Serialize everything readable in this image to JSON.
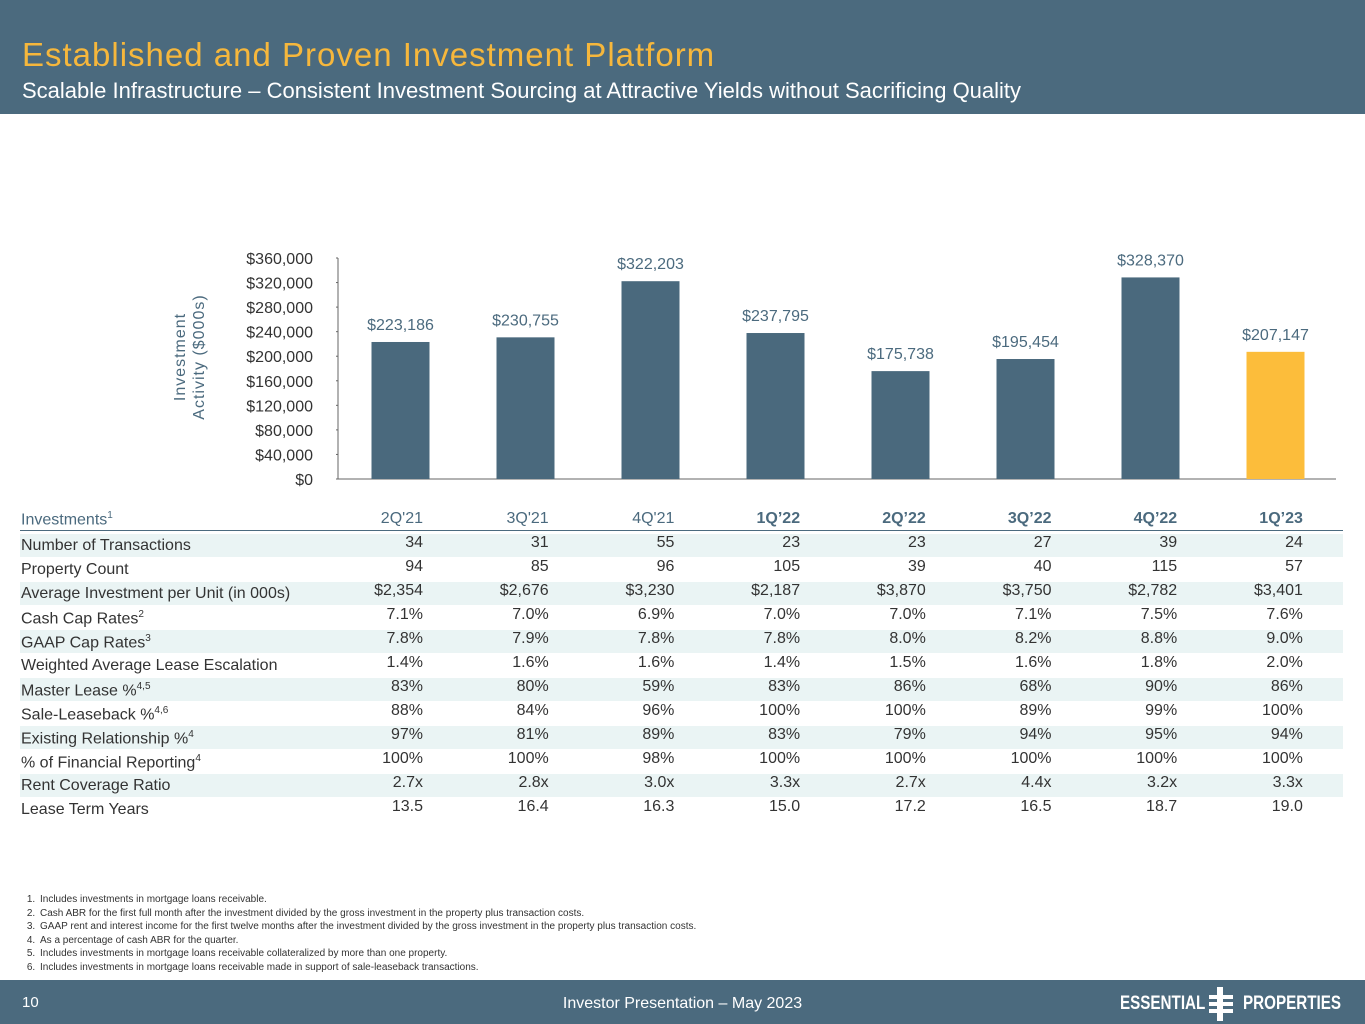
{
  "header": {
    "title": "Established and Proven Investment Platform",
    "subtitle": "Scalable Infrastructure – Consistent Investment Sourcing at Attractive Yields without Sacrificing Quality"
  },
  "chart_data": {
    "type": "bar",
    "y_label": [
      "Investment",
      "Activity ($000s)"
    ],
    "categories": [
      "2Q'21",
      "3Q'21",
      "4Q'21",
      "1Q’22",
      "2Q’22",
      "3Q’22",
      "4Q’22",
      "1Q’23"
    ],
    "values": [
      223186,
      230755,
      322203,
      237795,
      175738,
      195454,
      328370,
      207147
    ],
    "value_labels": [
      "$223,186",
      "$230,755",
      "$322,203",
      "$237,795",
      "$175,738",
      "$195,454",
      "$328,370",
      "$207,147"
    ],
    "colors": [
      "#4a697d",
      "#4a697d",
      "#4a697d",
      "#4a697d",
      "#4a697d",
      "#4a697d",
      "#4a697d",
      "#fcbd3b"
    ],
    "ylim": [
      0,
      360000
    ],
    "yticks": [
      {
        "value": 0,
        "label": "$0"
      },
      {
        "value": 40000,
        "label": "$40,000"
      },
      {
        "value": 80000,
        "label": "$80,000"
      },
      {
        "value": 120000,
        "label": "$120,000"
      },
      {
        "value": 160000,
        "label": "$160,000"
      },
      {
        "value": 200000,
        "label": "$200,000"
      },
      {
        "value": 240000,
        "label": "$240,000"
      },
      {
        "value": 280000,
        "label": "$280,000"
      },
      {
        "value": 320000,
        "label": "$320,000"
      },
      {
        "value": 360000,
        "label": "$360,000"
      }
    ]
  },
  "table": {
    "corner": {
      "label": "Investments",
      "sup": "1"
    },
    "rows": [
      {
        "label": "Number of Transactions",
        "sup": null,
        "cells": [
          "34",
          "31",
          "55",
          "23",
          "23",
          "27",
          "39",
          "24"
        ]
      },
      {
        "label": "Property Count",
        "sup": null,
        "cells": [
          "94",
          "85",
          "96",
          "105",
          "39",
          "40",
          "115",
          "57"
        ]
      },
      {
        "label": "Average Investment per Unit (in 000s)",
        "sup": null,
        "cells": [
          "$2,354",
          "$2,676",
          "$3,230",
          "$2,187",
          "$3,870",
          "$3,750",
          "$2,782",
          "$3,401"
        ]
      },
      {
        "label": "Cash Cap Rates",
        "sup": "2",
        "cells": [
          "7.1%",
          "7.0%",
          "6.9%",
          "7.0%",
          "7.0%",
          "7.1%",
          "7.5%",
          "7.6%"
        ]
      },
      {
        "label": "GAAP Cap Rates",
        "sup": "3",
        "cells": [
          "7.8%",
          "7.9%",
          "7.8%",
          "7.8%",
          "8.0%",
          "8.2%",
          "8.8%",
          "9.0%"
        ]
      },
      {
        "label": "Weighted Average Lease Escalation",
        "sup": null,
        "cells": [
          "1.4%",
          "1.6%",
          "1.6%",
          "1.4%",
          "1.5%",
          "1.6%",
          "1.8%",
          "2.0%"
        ]
      },
      {
        "label": "Master Lease %",
        "sup": "4,5",
        "cells": [
          "83%",
          "80%",
          "59%",
          "83%",
          "86%",
          "68%",
          "90%",
          "86%"
        ]
      },
      {
        "label": "Sale-Leaseback %",
        "sup": "4,6",
        "cells": [
          "88%",
          "84%",
          "96%",
          "100%",
          "100%",
          "89%",
          "99%",
          "100%"
        ]
      },
      {
        "label": "Existing Relationship %",
        "sup": "4",
        "cells": [
          "97%",
          "81%",
          "89%",
          "83%",
          "79%",
          "94%",
          "95%",
          "94%"
        ]
      },
      {
        "label": "% of Financial Reporting",
        "sup": "4",
        "cells": [
          "100%",
          "100%",
          "98%",
          "100%",
          "100%",
          "100%",
          "100%",
          "100%"
        ]
      },
      {
        "label": "Rent Coverage Ratio",
        "sup": null,
        "cells": [
          "2.7x",
          "2.8x",
          "3.0x",
          "3.3x",
          "2.7x",
          "4.4x",
          "3.2x",
          "3.3x"
        ]
      },
      {
        "label": "Lease Term Years",
        "sup": null,
        "cells": [
          "13.5",
          "16.4",
          "16.3",
          "15.0",
          "17.2",
          "16.5",
          "18.7",
          "19.0"
        ]
      }
    ]
  },
  "footnotes": [
    "Includes investments in mortgage loans receivable.",
    "Cash ABR for the first full month after the investment divided by the gross investment in the property plus transaction costs.",
    "GAAP rent and interest income for the first twelve months after the investment divided by the gross investment in the property plus transaction costs.",
    "As a percentage of cash ABR for the quarter.",
    "Includes investments in mortgage loans receivable collateralized by more than one property.",
    "Includes investments in mortgage loans receivable made in support of sale-leaseback transactions."
  ],
  "footer": {
    "page": "10",
    "text": "Investor Presentation – May 2023",
    "logo_left": "ESSENTIAL",
    "logo_right": "PROPERTIES"
  }
}
